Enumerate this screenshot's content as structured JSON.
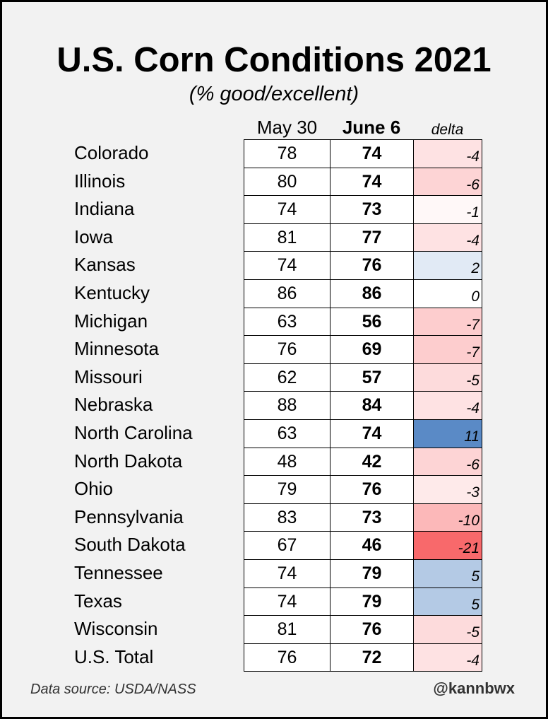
{
  "chart_data": {
    "type": "table",
    "title": "U.S. Corn Conditions 2021",
    "subtitle": "(% good/excellent)",
    "columns": [
      "May 30",
      "June 6",
      "delta"
    ],
    "rows": [
      {
        "state": "Colorado",
        "may30": "78",
        "june6": "74",
        "delta": -4
      },
      {
        "state": "Illinois",
        "may30": "80",
        "june6": "74",
        "delta": -6
      },
      {
        "state": "Indiana",
        "may30": "74",
        "june6": "73",
        "delta": -1
      },
      {
        "state": "Iowa",
        "may30": "81",
        "june6": "77",
        "delta": -4
      },
      {
        "state": "Kansas",
        "may30": "74",
        "june6": "76",
        "delta": 2
      },
      {
        "state": "Kentucky",
        "may30": "86",
        "june6": "86",
        "delta": 0
      },
      {
        "state": "Michigan",
        "may30": "63",
        "june6": "56",
        "delta": -7
      },
      {
        "state": "Minnesota",
        "may30": "76",
        "june6": "69",
        "delta": -7
      },
      {
        "state": "Missouri",
        "may30": "62",
        "june6": "57",
        "delta": -5
      },
      {
        "state": "Nebraska",
        "may30": "88",
        "june6": "84",
        "delta": -4
      },
      {
        "state": "North Carolina",
        "may30": "63",
        "june6": "74",
        "delta": 11
      },
      {
        "state": "North Dakota",
        "may30": "48",
        "june6": "42",
        "delta": -6
      },
      {
        "state": "Ohio",
        "may30": "79",
        "june6": "76",
        "delta": -3
      },
      {
        "state": "Pennsylvania",
        "may30": "83",
        "june6": "73",
        "delta": -10
      },
      {
        "state": "South Dakota",
        "may30": "67",
        "june6": "46",
        "delta": -21
      },
      {
        "state": "Tennessee",
        "may30": "74",
        "june6": "79",
        "delta": 5
      },
      {
        "state": "Texas",
        "may30": "74",
        "june6": "79",
        "delta": 5
      },
      {
        "state": "Wisconsin",
        "may30": "81",
        "june6": "76",
        "delta": -5
      },
      {
        "state": "U.S. Total",
        "may30": "76",
        "june6": "72",
        "delta": -4
      }
    ],
    "colors": {
      "negative_max": "#f8696b",
      "positive_max": "#5a8ac6",
      "neutral": "#ffffff"
    }
  },
  "footer": {
    "source": "Data source: USDA/NASS",
    "handle": "@kannbwx"
  }
}
